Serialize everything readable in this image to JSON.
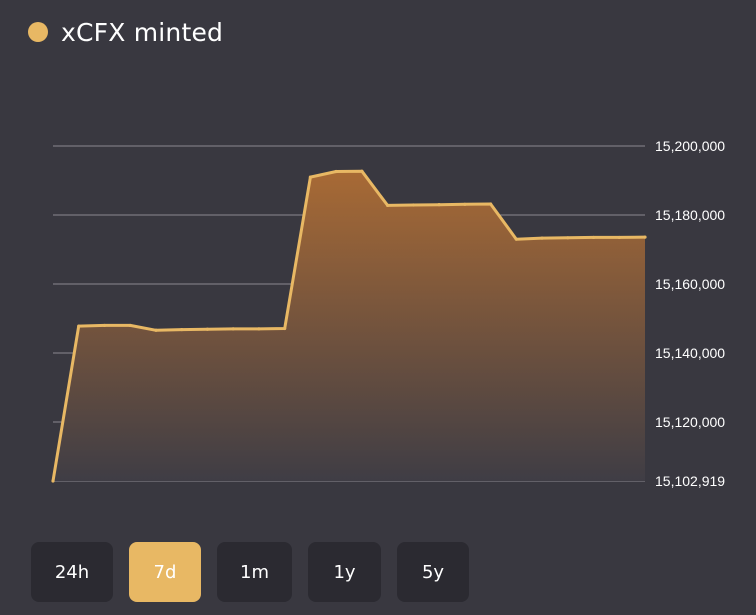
{
  "title": "xCFX minted",
  "colors": {
    "accent": "#e8b864",
    "background": "#393840",
    "button_bg": "#2b2a31",
    "grid": "#8a8890",
    "area_top": "#a86a35",
    "area_bottom": "#3f3d45"
  },
  "range_buttons": [
    {
      "label": "24h",
      "active": false
    },
    {
      "label": "7d",
      "active": true
    },
    {
      "label": "1m",
      "active": false
    },
    {
      "label": "1y",
      "active": false
    },
    {
      "label": "5y",
      "active": false
    }
  ],
  "chart_data": {
    "type": "area",
    "title": "xCFX minted",
    "xlabel": "",
    "ylabel": "",
    "ylim": [
      15102919,
      15200000
    ],
    "y_ticks": [
      15200000,
      15180000,
      15160000,
      15140000,
      15120000,
      15102919
    ],
    "y_tick_labels": [
      "15,200,000",
      "15,180,000",
      "15,160,000",
      "15,140,000",
      "15,120,000",
      "15,102,919"
    ],
    "grid": true,
    "y_axis_position": "right",
    "series": [
      {
        "values": [
          15102919,
          15147800,
          15148000,
          15148000,
          15146600,
          15146800,
          15146900,
          15147000,
          15147000,
          15147100,
          15191000,
          15192600,
          15192700,
          15182800,
          15182900,
          15183000,
          15183100,
          15183200,
          15173000,
          15173300,
          15173400,
          15173500,
          15173500,
          15173600
        ]
      }
    ]
  }
}
